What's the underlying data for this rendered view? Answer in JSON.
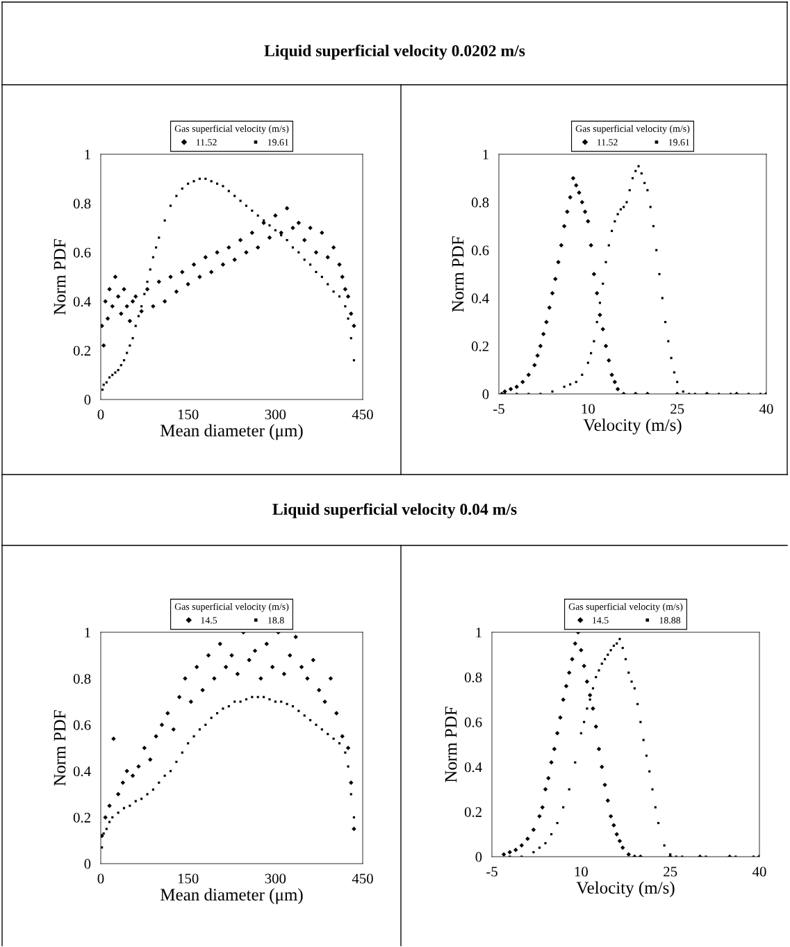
{
  "chart_data": [
    {
      "type": "scatter",
      "title": "Liquid superficial velocity 0.0202 m/s",
      "xlabel": "Mean diameter (μm)",
      "ylabel": "Norm PDF",
      "legend_title": "Gas superficial velocity (m/s)",
      "legend": "top",
      "xlim": [
        0,
        450
      ],
      "xticks": [
        0,
        150,
        300,
        450
      ],
      "ylim": [
        0,
        1
      ],
      "yticks": [
        0,
        0.2,
        0.4,
        0.6,
        0.8,
        1
      ],
      "series": [
        {
          "name": "11.52",
          "color": "#000000",
          "marker": "diamond",
          "x": [
            2,
            5,
            8,
            12,
            15,
            20,
            25,
            30,
            35,
            40,
            45,
            50,
            55,
            60,
            70,
            80,
            90,
            100,
            110,
            120,
            130,
            140,
            150,
            160,
            170,
            180,
            190,
            200,
            210,
            220,
            230,
            240,
            250,
            260,
            270,
            280,
            290,
            300,
            310,
            320,
            330,
            340,
            350,
            360,
            370,
            380,
            390,
            400,
            410,
            415,
            420,
            425,
            430,
            435
          ],
          "values": [
            0.3,
            0.22,
            0.4,
            0.33,
            0.45,
            0.38,
            0.5,
            0.42,
            0.35,
            0.45,
            0.38,
            0.32,
            0.4,
            0.42,
            0.36,
            0.45,
            0.38,
            0.48,
            0.4,
            0.5,
            0.44,
            0.52,
            0.47,
            0.55,
            0.5,
            0.58,
            0.52,
            0.6,
            0.55,
            0.62,
            0.57,
            0.65,
            0.6,
            0.68,
            0.62,
            0.72,
            0.66,
            0.75,
            0.68,
            0.78,
            0.7,
            0.72,
            0.65,
            0.7,
            0.6,
            0.68,
            0.58,
            0.62,
            0.55,
            0.5,
            0.45,
            0.42,
            0.35,
            0.3
          ]
        },
        {
          "name": "19.61",
          "color": "#000000",
          "marker": "square",
          "x": [
            3,
            5,
            10,
            15,
            20,
            25,
            30,
            35,
            40,
            45,
            50,
            55,
            60,
            65,
            70,
            75,
            80,
            85,
            90,
            95,
            100,
            110,
            120,
            130,
            140,
            150,
            160,
            170,
            180,
            190,
            200,
            210,
            220,
            230,
            240,
            250,
            260,
            270,
            280,
            290,
            300,
            310,
            320,
            330,
            340,
            350,
            360,
            370,
            380,
            390,
            400,
            410,
            420,
            425,
            430,
            435
          ],
          "values": [
            0.04,
            0.06,
            0.07,
            0.09,
            0.1,
            0.11,
            0.12,
            0.14,
            0.16,
            0.19,
            0.22,
            0.25,
            0.3,
            0.34,
            0.38,
            0.43,
            0.48,
            0.53,
            0.58,
            0.62,
            0.66,
            0.73,
            0.79,
            0.83,
            0.86,
            0.88,
            0.89,
            0.9,
            0.9,
            0.89,
            0.88,
            0.87,
            0.85,
            0.83,
            0.81,
            0.79,
            0.77,
            0.75,
            0.73,
            0.71,
            0.69,
            0.67,
            0.65,
            0.62,
            0.6,
            0.57,
            0.55,
            0.52,
            0.5,
            0.47,
            0.44,
            0.42,
            0.38,
            0.33,
            0.25,
            0.16
          ]
        }
      ]
    },
    {
      "type": "scatter",
      "xlabel": "Velocity (m/s)",
      "ylabel": "Norm PDF",
      "legend_title": "Gas superficial velocity (m/s)",
      "legend": "top",
      "xlim": [
        -5,
        40
      ],
      "xticks": [
        -5,
        10,
        25,
        40
      ],
      "ylim": [
        0,
        1
      ],
      "yticks": [
        0,
        0.2,
        0.4,
        0.6,
        0.8,
        1
      ],
      "series": [
        {
          "name": "11.52",
          "color": "#000000",
          "marker": "diamond",
          "x": [
            -4.5,
            -4,
            -3,
            -2,
            -1,
            0,
            1,
            1.5,
            2,
            2.5,
            3,
            3.5,
            4,
            4.5,
            5,
            5.5,
            6,
            6.5,
            7,
            7.5,
            8,
            8.5,
            9,
            9.5,
            10,
            10.5,
            11,
            11.5,
            12,
            12.5,
            13,
            13.5,
            14,
            14.5,
            15,
            16,
            18,
            20,
            25,
            30,
            35,
            40
          ],
          "values": [
            0,
            0.01,
            0.02,
            0.03,
            0.05,
            0.08,
            0.12,
            0.16,
            0.2,
            0.25,
            0.3,
            0.36,
            0.42,
            0.48,
            0.55,
            0.62,
            0.7,
            0.76,
            0.82,
            0.9,
            0.87,
            0.84,
            0.8,
            0.76,
            0.72,
            0.62,
            0.5,
            0.42,
            0.33,
            0.27,
            0.2,
            0.14,
            0.08,
            0.05,
            0.02,
            0,
            0,
            0,
            0,
            0,
            0,
            0
          ]
        },
        {
          "name": "19.61",
          "color": "#000000",
          "marker": "square",
          "x": [
            -4,
            -2,
            0,
            2,
            4,
            6,
            7,
            8,
            9,
            10,
            10.5,
            11,
            11.5,
            12,
            12.5,
            13,
            13.5,
            14,
            14.5,
            15,
            15.5,
            16,
            16.5,
            17,
            17.5,
            18,
            18.5,
            19,
            19.5,
            20,
            20.5,
            21,
            21.5,
            22,
            22.5,
            23,
            23.5,
            24,
            24.5,
            25,
            26,
            27,
            28,
            30,
            32,
            34,
            37,
            39
          ],
          "values": [
            0,
            0,
            0,
            0,
            0.01,
            0.03,
            0.04,
            0.05,
            0.08,
            0.13,
            0.17,
            0.22,
            0.3,
            0.38,
            0.46,
            0.55,
            0.62,
            0.68,
            0.72,
            0.75,
            0.77,
            0.78,
            0.8,
            0.85,
            0.9,
            0.93,
            0.95,
            0.92,
            0.88,
            0.85,
            0.78,
            0.7,
            0.6,
            0.5,
            0.4,
            0.3,
            0.22,
            0.15,
            0.09,
            0.05,
            0.01,
            0,
            0,
            0,
            0,
            0,
            0,
            0
          ]
        }
      ]
    },
    {
      "type": "scatter",
      "title": "Liquid superficial velocity 0.04 m/s",
      "xlabel": "Mean diameter (μm)",
      "ylabel": "Norm PDF",
      "legend_title": "Gas superficial velocity (m/s)",
      "legend": "top",
      "xlim": [
        0,
        450
      ],
      "xticks": [
        0,
        150,
        300,
        450
      ],
      "ylim": [
        0,
        1
      ],
      "yticks": [
        0,
        0.2,
        0.4,
        0.6,
        0.8,
        1
      ],
      "series": [
        {
          "name": "14.5",
          "color": "#000000",
          "marker": "diamond",
          "x": [
            2,
            8,
            15,
            22,
            30,
            38,
            45,
            55,
            65,
            75,
            85,
            95,
            105,
            115,
            125,
            135,
            145,
            155,
            165,
            175,
            185,
            195,
            205,
            215,
            225,
            235,
            245,
            255,
            265,
            275,
            285,
            295,
            305,
            315,
            325,
            335,
            345,
            355,
            365,
            375,
            385,
            395,
            405,
            415,
            425,
            430,
            435
          ],
          "values": [
            0.12,
            0.2,
            0.25,
            0.54,
            0.3,
            0.35,
            0.4,
            0.38,
            0.42,
            0.5,
            0.45,
            0.55,
            0.6,
            0.65,
            0.58,
            0.72,
            0.8,
            0.7,
            0.85,
            0.75,
            0.9,
            0.8,
            0.95,
            0.85,
            0.9,
            0.82,
            1.0,
            0.88,
            0.92,
            0.8,
            0.95,
            0.85,
            1.0,
            0.82,
            0.9,
            0.98,
            0.85,
            0.8,
            0.88,
            0.75,
            0.7,
            0.8,
            0.65,
            0.55,
            0.5,
            0.35,
            0.15
          ]
        },
        {
          "name": "18.8",
          "color": "#000000",
          "marker": "square",
          "x": [
            2,
            5,
            10,
            15,
            20,
            30,
            40,
            50,
            60,
            70,
            80,
            90,
            100,
            110,
            120,
            130,
            140,
            150,
            160,
            170,
            180,
            190,
            200,
            210,
            220,
            230,
            240,
            250,
            260,
            270,
            280,
            290,
            300,
            310,
            320,
            330,
            340,
            350,
            360,
            370,
            380,
            390,
            400,
            410,
            420,
            425,
            430,
            435
          ],
          "values": [
            0.07,
            0.13,
            0.15,
            0.18,
            0.2,
            0.22,
            0.24,
            0.25,
            0.27,
            0.28,
            0.3,
            0.32,
            0.35,
            0.38,
            0.4,
            0.44,
            0.48,
            0.52,
            0.55,
            0.58,
            0.6,
            0.63,
            0.65,
            0.67,
            0.68,
            0.7,
            0.7,
            0.71,
            0.72,
            0.72,
            0.72,
            0.71,
            0.7,
            0.7,
            0.69,
            0.68,
            0.66,
            0.64,
            0.62,
            0.6,
            0.58,
            0.56,
            0.54,
            0.52,
            0.48,
            0.42,
            0.3,
            0.2
          ]
        }
      ]
    },
    {
      "type": "scatter",
      "xlabel": "Velocity (m/s)",
      "ylabel": "Norm PDF",
      "legend_title": "Gas superficial velocity (m/s)",
      "legend": "top",
      "xlim": [
        -5,
        40
      ],
      "xticks": [
        -5,
        10,
        25,
        40
      ],
      "ylim": [
        0,
        1
      ],
      "yticks": [
        0,
        0.2,
        0.4,
        0.6,
        0.8,
        1
      ],
      "series": [
        {
          "name": "14.5",
          "color": "#000000",
          "marker": "diamond",
          "x": [
            -3,
            -2,
            -1,
            0,
            1,
            2,
            3,
            3.5,
            4,
            4.5,
            5,
            5.5,
            6,
            6.5,
            7,
            7.5,
            8,
            8.5,
            9,
            9.5,
            10,
            10.5,
            11,
            11.5,
            12,
            12.5,
            13,
            13.5,
            14,
            14.5,
            15,
            15.5,
            16,
            16.5,
            17,
            18,
            19,
            20,
            25,
            30,
            35,
            40
          ],
          "values": [
            0.01,
            0.02,
            0.03,
            0.05,
            0.08,
            0.12,
            0.18,
            0.22,
            0.3,
            0.35,
            0.42,
            0.48,
            0.55,
            0.62,
            0.7,
            0.76,
            0.82,
            0.88,
            0.95,
            1.0,
            0.92,
            0.85,
            0.78,
            0.72,
            0.66,
            0.58,
            0.48,
            0.4,
            0.32,
            0.25,
            0.18,
            0.14,
            0.1,
            0.07,
            0.04,
            0.01,
            0,
            0,
            0,
            0,
            0,
            0
          ]
        },
        {
          "name": "18.88",
          "color": "#000000",
          "marker": "square",
          "x": [
            -2,
            0,
            2,
            3,
            4,
            5,
            6,
            7,
            8,
            9,
            10,
            10.5,
            11,
            11.5,
            12,
            12.5,
            13,
            13.5,
            14,
            14.5,
            15,
            15.5,
            16,
            16.5,
            17,
            17.5,
            18,
            18.5,
            19,
            19.5,
            20,
            20.5,
            21,
            21.5,
            22,
            22.5,
            23,
            24,
            25,
            26,
            27,
            31,
            36,
            39
          ],
          "values": [
            0,
            0,
            0.02,
            0.04,
            0.06,
            0.1,
            0.15,
            0.22,
            0.3,
            0.42,
            0.55,
            0.6,
            0.66,
            0.7,
            0.75,
            0.8,
            0.83,
            0.86,
            0.88,
            0.9,
            0.92,
            0.94,
            0.95,
            0.97,
            0.93,
            0.88,
            0.82,
            0.78,
            0.75,
            0.68,
            0.6,
            0.52,
            0.45,
            0.38,
            0.3,
            0.22,
            0.15,
            0.05,
            0.01,
            0,
            0,
            0,
            0,
            0
          ]
        }
      ]
    }
  ]
}
